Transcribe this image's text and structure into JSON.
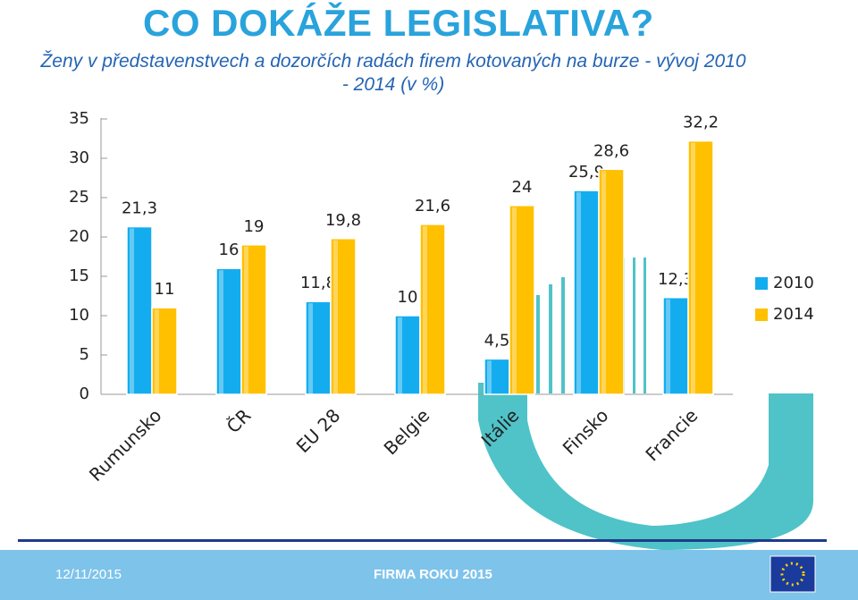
{
  "heading": "CO DOKÁŽE LEGISLATIVA?",
  "footer": {
    "date": "12/11/2015",
    "event": "FIRMA ROKU 2015"
  },
  "chart_data": {
    "type": "bar",
    "title": "Ženy v představenstvech a dozorčích radách firem kotovaných na burze - vývoj 2010 - 2014 (v %)",
    "categories": [
      "Rumunsko",
      "ČR",
      "EU 28",
      "Belgie",
      "Itálie",
      "Finsko",
      "Francie"
    ],
    "series": [
      {
        "name": "2010",
        "color": "#13adef",
        "values": [
          21.3,
          16,
          11.8,
          10,
          4.5,
          25.9,
          12.3
        ],
        "value_labels": [
          "21,3",
          "16",
          "11,8",
          "10",
          "4,5",
          "25,9",
          "12,3"
        ]
      },
      {
        "name": "2014",
        "color": "#ffc000",
        "values": [
          11,
          19,
          19.8,
          21.6,
          24,
          28.6,
          32.2
        ],
        "value_labels": [
          "11",
          "19",
          "19,8",
          "21,6",
          "24",
          "28,6",
          "32,2"
        ]
      }
    ],
    "ylim": [
      0,
      35
    ],
    "yticks": [
      0,
      5,
      10,
      15,
      20,
      25,
      30,
      35
    ],
    "grid": false,
    "legend": "right"
  }
}
